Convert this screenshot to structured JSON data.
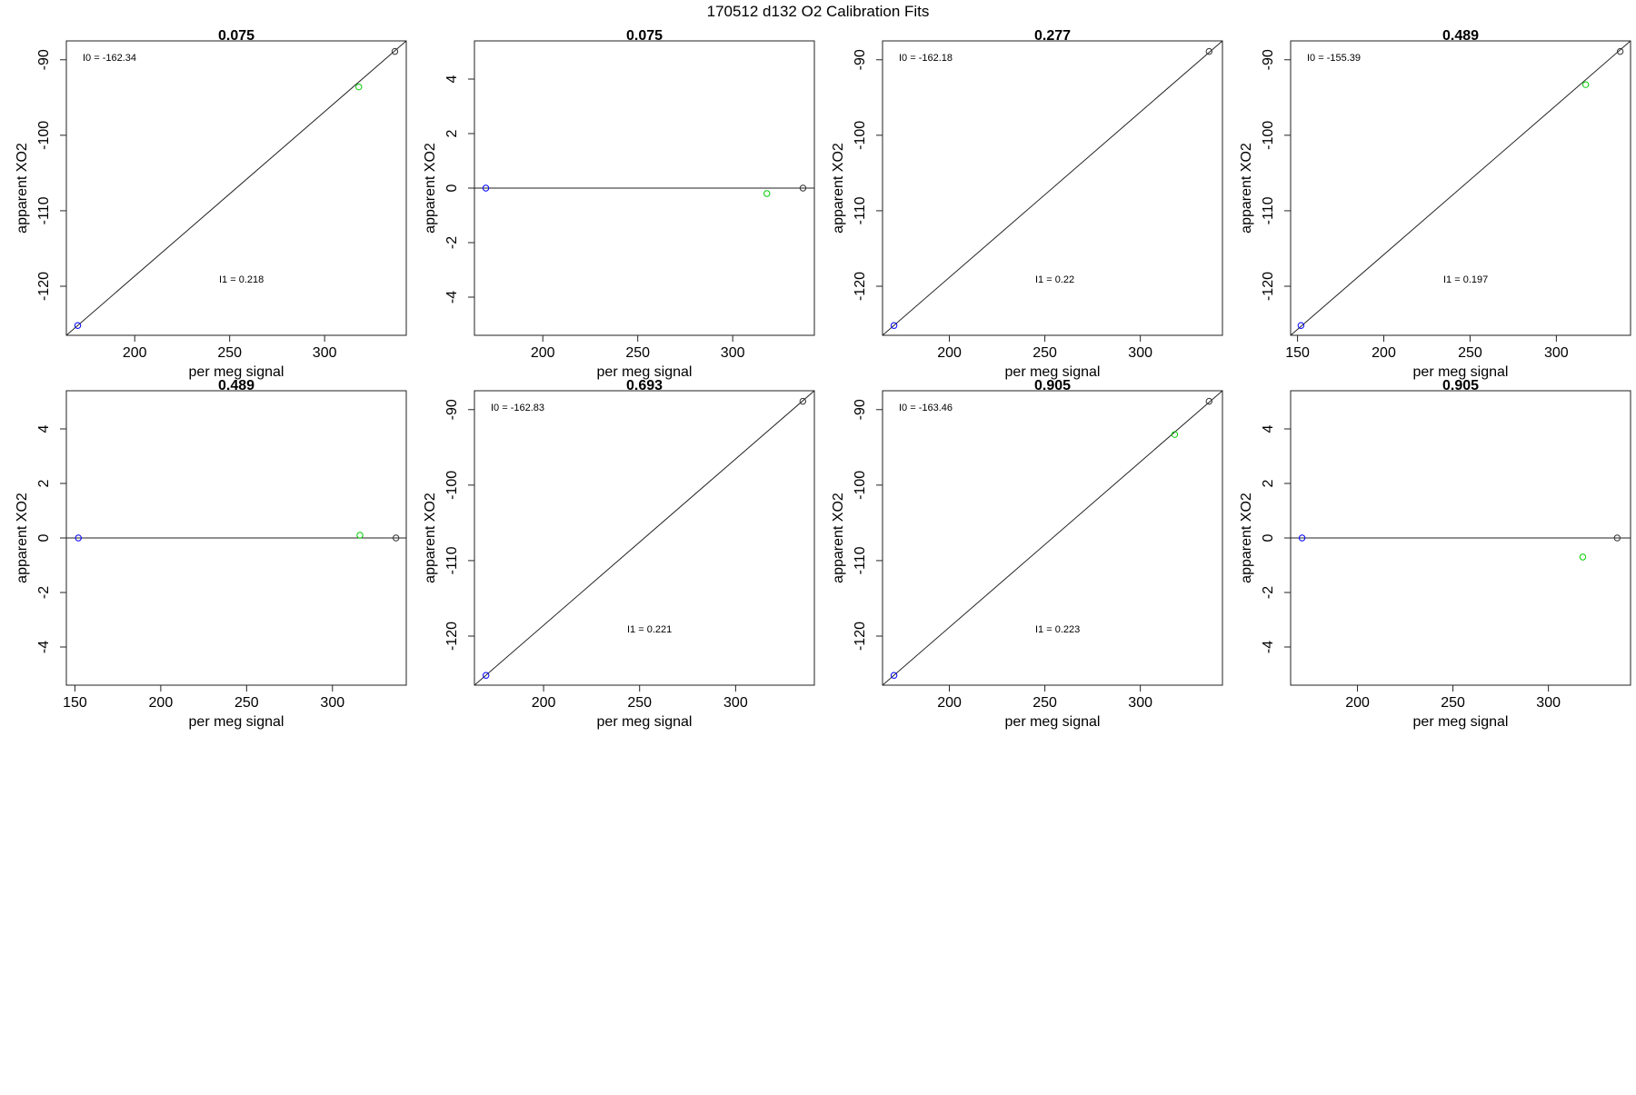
{
  "figure": {
    "title": "170512   d132   O2 Calibration Fits"
  },
  "chart_data": [
    {
      "type": "scatter",
      "title": "0.075",
      "xlabel": "per meg signal",
      "ylabel": "apparent XO2",
      "xlim": [
        164,
        343
      ],
      "ylim": [
        -126.5,
        -87.5
      ],
      "xticks": [
        200,
        250,
        300
      ],
      "yticks": [
        -90,
        -100,
        -110,
        -120
      ],
      "ytick_labels": [
        "-90",
        "-100",
        "-110",
        "-120"
      ],
      "points": [
        {
          "x": 170,
          "y": -125.2,
          "color": "#0000ff"
        },
        {
          "x": 318,
          "y": -93.6,
          "color": "#00cc00"
        },
        {
          "x": 337,
          "y": -88.9,
          "color": "#333333"
        }
      ],
      "line": {
        "x": [
          164,
          343
        ],
        "y": [
          -126.5,
          -87.5
        ]
      },
      "annotations": [
        {
          "label": "I0 =",
          "value": "-162.34",
          "pos": "top-left"
        },
        {
          "label": "I1 =",
          "value": "0.218",
          "pos": "bottom-center"
        }
      ]
    },
    {
      "type": "scatter",
      "title": "0.075",
      "xlabel": "per meg signal",
      "ylabel": "apparent XO2",
      "xlim": [
        164,
        343
      ],
      "ylim": [
        -5.4,
        5.4
      ],
      "xticks": [
        200,
        250,
        300
      ],
      "yticks": [
        4,
        2,
        0,
        -2,
        -4
      ],
      "ytick_labels": [
        "4",
        "2",
        "0",
        "-2",
        "-4"
      ],
      "points": [
        {
          "x": 170,
          "y": 0,
          "color": "#0000ff"
        },
        {
          "x": 318,
          "y": -0.2,
          "color": "#00cc00"
        },
        {
          "x": 337,
          "y": 0,
          "color": "#333333"
        }
      ],
      "line": {
        "x": [
          164,
          343
        ],
        "y": [
          0,
          0
        ]
      },
      "annotations": []
    },
    {
      "type": "scatter",
      "title": "0.277",
      "xlabel": "per meg signal",
      "ylabel": "apparent XO2",
      "xlim": [
        165,
        343
      ],
      "ylim": [
        -126.5,
        -87.5
      ],
      "xticks": [
        200,
        250,
        300
      ],
      "yticks": [
        -90,
        -100,
        -110,
        -120
      ],
      "ytick_labels": [
        "-90",
        "-100",
        "-110",
        "-120"
      ],
      "points": [
        {
          "x": 171,
          "y": -125.2,
          "color": "#0000ff"
        },
        {
          "x": 336,
          "y": -88.9,
          "color": "#333333"
        }
      ],
      "line": {
        "x": [
          165,
          343
        ],
        "y": [
          -126.5,
          -87.5
        ]
      },
      "annotations": [
        {
          "label": "I0 =",
          "value": "-162.18",
          "pos": "top-left"
        },
        {
          "label": "I1 =",
          "value": "0.22",
          "pos": "bottom-center"
        }
      ]
    },
    {
      "type": "scatter",
      "title": "0.489",
      "xlabel": "per meg signal",
      "ylabel": "apparent XO2",
      "xlim": [
        146,
        343
      ],
      "ylim": [
        -126.5,
        -87.5
      ],
      "xticks": [
        150,
        200,
        250,
        300
      ],
      "yticks": [
        -90,
        -100,
        -110,
        -120
      ],
      "ytick_labels": [
        "-90",
        "-100",
        "-110",
        "-120"
      ],
      "points": [
        {
          "x": 152,
          "y": -125.2,
          "color": "#0000ff"
        },
        {
          "x": 317,
          "y": -93.3,
          "color": "#00cc00"
        },
        {
          "x": 337,
          "y": -88.9,
          "color": "#333333"
        }
      ],
      "line": {
        "x": [
          146,
          343
        ],
        "y": [
          -126.5,
          -87.5
        ]
      },
      "annotations": [
        {
          "label": "I0 =",
          "value": "-155.39",
          "pos": "top-left"
        },
        {
          "label": "I1 =",
          "value": "0.197",
          "pos": "bottom-center"
        }
      ]
    },
    {
      "type": "scatter",
      "title": "0.489",
      "xlabel": "per meg signal",
      "ylabel": "apparent XO2",
      "xlim": [
        145,
        343
      ],
      "ylim": [
        -5.4,
        5.4
      ],
      "xticks": [
        150,
        200,
        250,
        300
      ],
      "yticks": [
        4,
        2,
        0,
        -2,
        -4
      ],
      "ytick_labels": [
        "4",
        "2",
        "0",
        "-2",
        "-4"
      ],
      "points": [
        {
          "x": 152,
          "y": 0,
          "color": "#0000ff"
        },
        {
          "x": 316,
          "y": 0.1,
          "color": "#00cc00"
        },
        {
          "x": 337,
          "y": 0,
          "color": "#333333"
        }
      ],
      "line": {
        "x": [
          145,
          343
        ],
        "y": [
          0,
          0
        ]
      },
      "annotations": []
    },
    {
      "type": "scatter",
      "title": "0.693",
      "xlabel": "per meg signal",
      "ylabel": "apparent XO2",
      "xlim": [
        164,
        341
      ],
      "ylim": [
        -126.5,
        -87.5
      ],
      "xticks": [
        200,
        250,
        300
      ],
      "yticks": [
        -90,
        -100,
        -110,
        -120
      ],
      "ytick_labels": [
        "-90",
        "-100",
        "-110",
        "-120"
      ],
      "points": [
        {
          "x": 170,
          "y": -125.2,
          "color": "#0000ff"
        },
        {
          "x": 335,
          "y": -88.9,
          "color": "#333333"
        }
      ],
      "line": {
        "x": [
          164,
          341
        ],
        "y": [
          -126.5,
          -87.5
        ]
      },
      "annotations": [
        {
          "label": "I0 =",
          "value": "-162.83",
          "pos": "top-left"
        },
        {
          "label": "I1 =",
          "value": "0.221",
          "pos": "bottom-center"
        }
      ]
    },
    {
      "type": "scatter",
      "title": "0.905",
      "xlabel": "per meg signal",
      "ylabel": "apparent XO2",
      "xlim": [
        165,
        343
      ],
      "ylim": [
        -126.5,
        -87.5
      ],
      "xticks": [
        200,
        250,
        300
      ],
      "yticks": [
        -90,
        -100,
        -110,
        -120
      ],
      "ytick_labels": [
        "-90",
        "-100",
        "-110",
        "-120"
      ],
      "points": [
        {
          "x": 171,
          "y": -125.2,
          "color": "#0000ff"
        },
        {
          "x": 318,
          "y": -93.3,
          "color": "#00cc00"
        },
        {
          "x": 336,
          "y": -88.9,
          "color": "#333333"
        }
      ],
      "line": {
        "x": [
          165,
          343
        ],
        "y": [
          -126.5,
          -87.5
        ]
      },
      "annotations": [
        {
          "label": "I0 =",
          "value": "-163.46",
          "pos": "top-left"
        },
        {
          "label": "I1 =",
          "value": "0.223",
          "pos": "bottom-center"
        }
      ]
    },
    {
      "type": "scatter",
      "title": "0.905",
      "xlabel": "per meg signal",
      "ylabel": "apparent XO2",
      "xlim": [
        165,
        343
      ],
      "ylim": [
        -5.4,
        5.4
      ],
      "xticks": [
        200,
        250,
        300
      ],
      "yticks": [
        4,
        2,
        0,
        -2,
        -4
      ],
      "ytick_labels": [
        "4",
        "2",
        "0",
        "-2",
        "-4"
      ],
      "points": [
        {
          "x": 171,
          "y": 0,
          "color": "#0000ff"
        },
        {
          "x": 318,
          "y": -0.7,
          "color": "#00cc00"
        },
        {
          "x": 336,
          "y": 0,
          "color": "#333333"
        }
      ],
      "line": {
        "x": [
          165,
          343
        ],
        "y": [
          0,
          0
        ]
      },
      "annotations": []
    }
  ]
}
